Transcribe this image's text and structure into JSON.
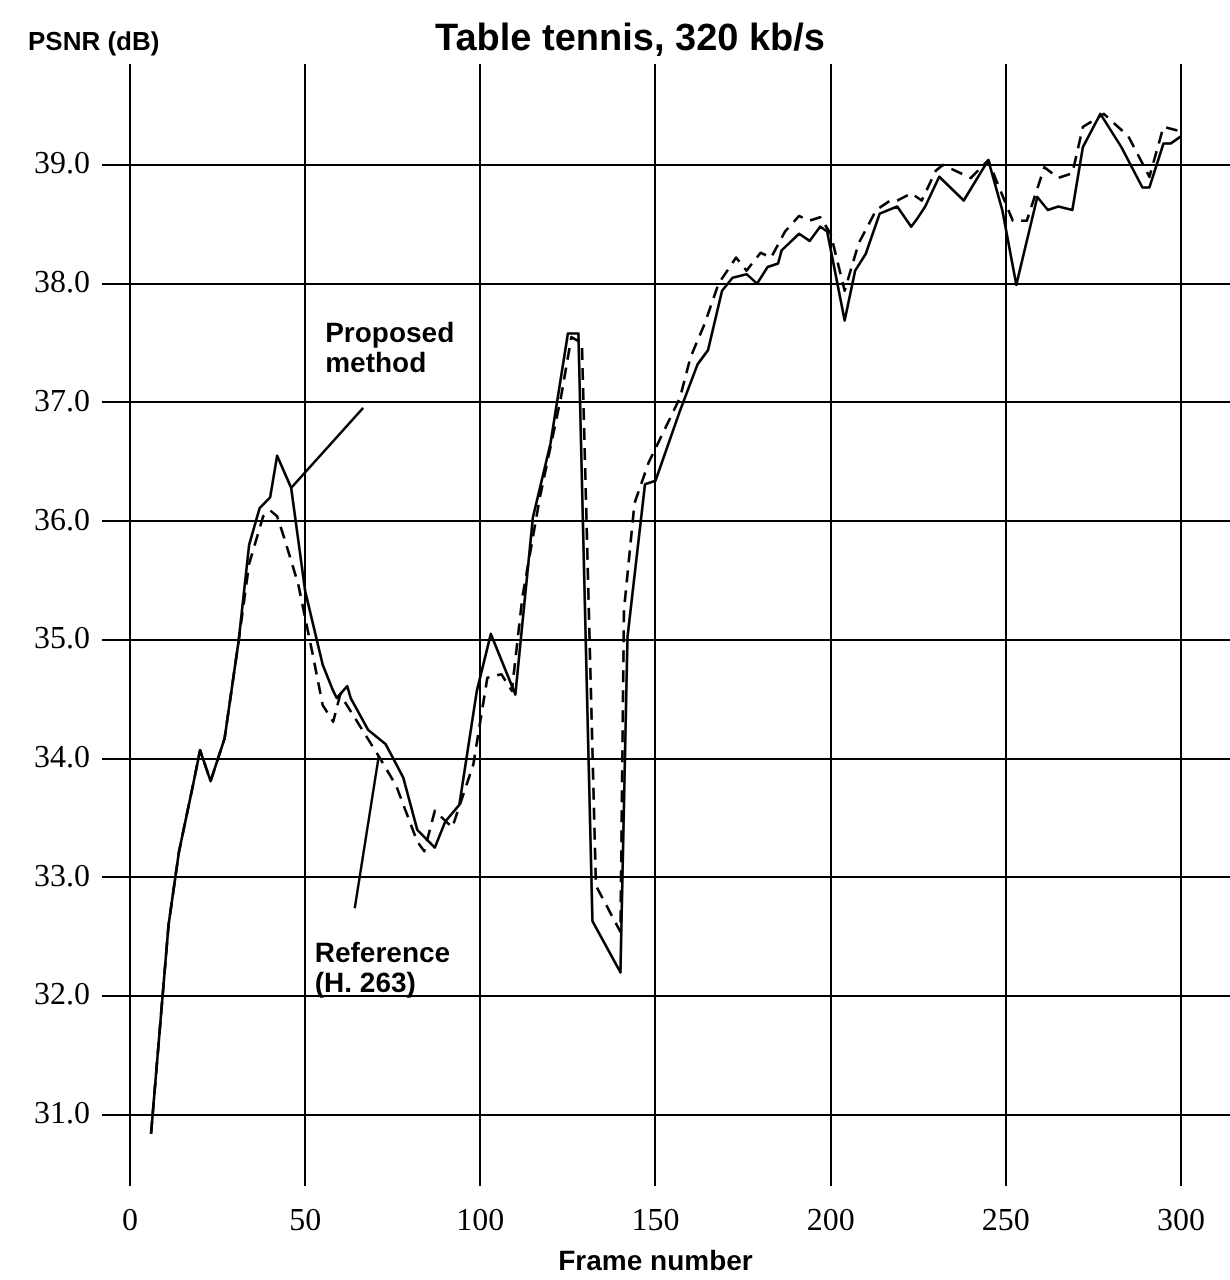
{
  "chart_data": {
    "type": "line",
    "title": "Table tennis, 320 kb/s",
    "xlabel": "Frame number",
    "ylabel": "PSNR (dB)",
    "xlim": [
      -8,
      314
    ],
    "ylim": [
      30.4,
      39.85
    ],
    "xticks": [
      0,
      50,
      100,
      150,
      200,
      250,
      300
    ],
    "yticks": [
      {
        "value": 31,
        "label": "31.0"
      },
      {
        "value": 32,
        "label": "32.0"
      },
      {
        "value": 33,
        "label": "33.0"
      },
      {
        "value": 34,
        "label": "34.0"
      },
      {
        "value": 35,
        "label": "35.0"
      },
      {
        "value": 36,
        "label": "36.0"
      },
      {
        "value": 37,
        "label": "37.0"
      },
      {
        "value": 38,
        "label": "38.0"
      },
      {
        "value": 39,
        "label": "39.0"
      }
    ],
    "grid": true,
    "legend": false,
    "marker": "none",
    "series": [
      {
        "color": "#000000",
        "line_style": "solid",
        "x": [
          6,
          11,
          14,
          18,
          20,
          23,
          27,
          31,
          34,
          37,
          40,
          42,
          46,
          50,
          55,
          58,
          59,
          62,
          63,
          68,
          73,
          78,
          82,
          87,
          90,
          94,
          99,
          103,
          110,
          115,
          120,
          125,
          128,
          132,
          140,
          142,
          147,
          150,
          157,
          162,
          165,
          169,
          172,
          176,
          179,
          182,
          185,
          186,
          191,
          194,
          197,
          199,
          204,
          207,
          210,
          214,
          219,
          223,
          225,
          227,
          231,
          238,
          245,
          249,
          253,
          259,
          262,
          265,
          269,
          272,
          277,
          283,
          289,
          291,
          295,
          297,
          300
        ],
        "values": [
          30.84,
          32.6,
          33.22,
          33.78,
          34.07,
          33.81,
          34.17,
          34.99,
          35.8,
          36.11,
          36.2,
          36.55,
          36.28,
          35.41,
          34.79,
          34.57,
          34.51,
          34.61,
          34.51,
          34.24,
          34.12,
          33.84,
          33.4,
          33.25,
          33.47,
          33.61,
          34.57,
          35.05,
          34.54,
          36.03,
          36.65,
          37.58,
          37.58,
          32.63,
          32.2,
          35.02,
          36.31,
          36.34,
          36.93,
          37.32,
          37.44,
          37.94,
          38.05,
          38.08,
          38.0,
          38.14,
          38.17,
          38.28,
          38.42,
          38.36,
          38.48,
          38.44,
          37.69,
          38.11,
          38.25,
          38.59,
          38.65,
          38.48,
          38.56,
          38.65,
          38.9,
          38.7,
          39.04,
          38.62,
          37.99,
          38.73,
          38.62,
          38.65,
          38.62,
          39.15,
          39.43,
          39.15,
          38.81,
          38.81,
          39.18,
          39.18,
          39.24
        ]
      },
      {
        "color": "#000000",
        "line_style": "dashed",
        "x": [
          6,
          11,
          14,
          18,
          20,
          23,
          27,
          31,
          34,
          38,
          40,
          42,
          44,
          48,
          52,
          55,
          58,
          60,
          71,
          76,
          82,
          84,
          87,
          92,
          98,
          102,
          106,
          109,
          112,
          117,
          123,
          126,
          129,
          133,
          140,
          141,
          144,
          148,
          157,
          160,
          164,
          168,
          173,
          176,
          180,
          183,
          187,
          191,
          194,
          197,
          200,
          204,
          208,
          213,
          217,
          219,
          223,
          226,
          230,
          232,
          240,
          245,
          247,
          252,
          256,
          261,
          265,
          269,
          272,
          278,
          285,
          291,
          295,
          299
        ],
        "values": [
          30.84,
          32.6,
          33.22,
          33.78,
          34.07,
          33.81,
          34.17,
          34.99,
          35.64,
          36.04,
          36.09,
          36.04,
          35.86,
          35.47,
          34.9,
          34.45,
          34.31,
          34.54,
          34.02,
          33.77,
          33.3,
          33.22,
          33.56,
          33.42,
          33.95,
          34.68,
          34.71,
          34.57,
          35.36,
          36.2,
          37.04,
          37.55,
          37.5,
          32.93,
          32.54,
          35.25,
          36.15,
          36.49,
          37.04,
          37.38,
          37.66,
          38.0,
          38.22,
          38.11,
          38.26,
          38.22,
          38.44,
          38.57,
          38.53,
          38.56,
          38.42,
          37.94,
          38.34,
          38.62,
          38.7,
          38.7,
          38.76,
          38.7,
          38.95,
          39.0,
          38.89,
          39.04,
          38.89,
          38.53,
          38.53,
          38.98,
          38.89,
          38.93,
          39.32,
          39.43,
          39.24,
          38.9,
          39.32,
          39.29
        ]
      }
    ],
    "annotations": [
      {
        "text": "Proposed\nmethod",
        "x": 46,
        "y": 36.28
      },
      {
        "text": "Reference\n(H. 263)",
        "x": 71,
        "y": 34.02
      }
    ]
  }
}
